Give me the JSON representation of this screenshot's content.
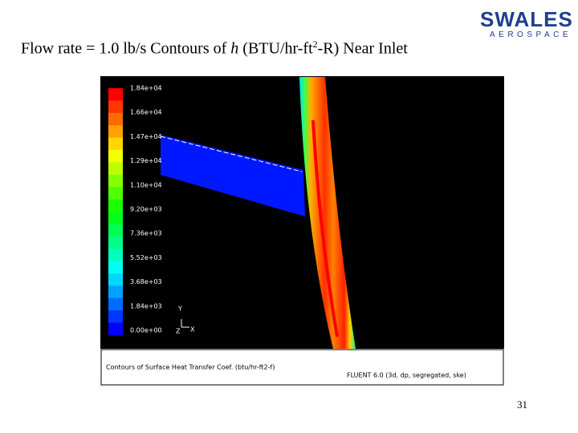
{
  "header": {
    "title_before": "Flow rate = 1.0 lb/s Contours of ",
    "title_italic": "h",
    "title_unit": " (BTU/hr-ft",
    "title_sup": "2",
    "title_after": "-R) Near Inlet",
    "logo_main": "SWALES",
    "logo_sub": "AEROSPACE"
  },
  "figure": {
    "colorbar_labels": [
      "1.84e+04",
      "1.66e+04",
      "1.47e+04",
      "1.29e+04",
      "1.10e+04",
      "9.20e+03",
      "7.36e+03",
      "5.52e+03",
      "3.68e+03",
      "1.84e+03",
      "0.00e+00"
    ],
    "axis_labels": {
      "y": "Y",
      "z": "Z",
      "x": "X"
    },
    "caption": "Contours of Surface Heat Transfer Coef. (btu/hr-ft2-f)",
    "solver": "FLUENT 6.0 (3d, dp, segregated, ske)"
  },
  "footer": {
    "page_number": "31"
  }
}
